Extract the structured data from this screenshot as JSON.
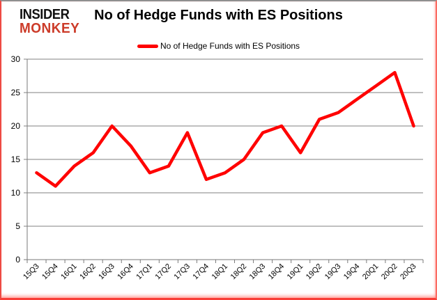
{
  "branding": {
    "line1": "INSIDER",
    "line2": "MONKEY",
    "brand_color": "#cc3b29",
    "text_color": "#111111"
  },
  "header": {
    "title": "No of Hedge Funds with ES Positions"
  },
  "legend": {
    "label": "No of Hedge Funds with ES Positions"
  },
  "chart_data": {
    "type": "line",
    "title": "No of Hedge Funds with ES Positions",
    "categories": [
      "15Q3",
      "15Q4",
      "16Q1",
      "16Q2",
      "16Q3",
      "16Q4",
      "17Q1",
      "17Q2",
      "17Q3",
      "17Q4",
      "18Q1",
      "18Q2",
      "18Q3",
      "18Q4",
      "19Q1",
      "19Q2",
      "19Q3",
      "19Q4",
      "20Q1",
      "20Q2",
      "20Q3"
    ],
    "series": [
      {
        "name": "No of Hedge Funds with ES Positions",
        "color": "#ff0000",
        "values": [
          13,
          11,
          14,
          16,
          20,
          17,
          13,
          14,
          19,
          12,
          13,
          15,
          19,
          20,
          16,
          21,
          22,
          24,
          26,
          28,
          20
        ]
      }
    ],
    "xlabel": "",
    "ylabel": "",
    "ylim": [
      0,
      30
    ],
    "yticks": [
      0,
      5,
      10,
      15,
      20,
      25,
      30
    ],
    "grid": "horizontal",
    "legend_position": "top-center",
    "gridline_color": "#808080",
    "axis_color": "#7a7a7a",
    "tick_label_color": "#000000",
    "x_tick_font_px": 11,
    "y_tick_font_px": 12
  }
}
